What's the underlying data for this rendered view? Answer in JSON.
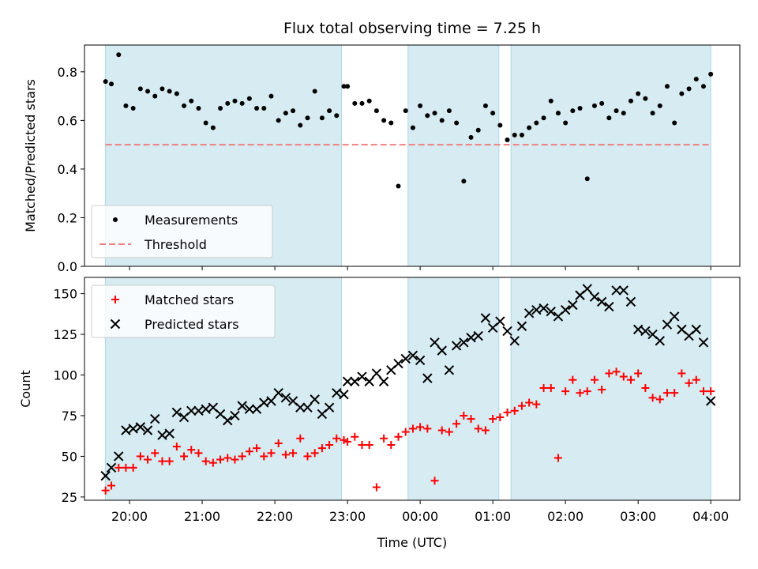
{
  "chart_data": {
    "type": "scatter",
    "title": "Flux total observing time = 7.25 h",
    "xlabel": "Time (UTC)",
    "x_ticks": [
      "20:00",
      "21:00",
      "22:00",
      "23:00",
      "00:00",
      "01:00",
      "02:00",
      "03:00",
      "04:00"
    ],
    "observing_windows_hours": [
      [
        19.667,
        22.917
      ],
      [
        23.833,
        25.083
      ],
      [
        25.25,
        28.0
      ]
    ],
    "panels": [
      {
        "ylabel": "Matched/Predicted stars",
        "ylim": [
          0,
          0.91
        ],
        "y_ticks": [
          "0.0",
          "0.2",
          "0.4",
          "0.6",
          "0.8"
        ],
        "legend_position": "lower-left",
        "threshold": {
          "name": "Threshold",
          "value": 0.5,
          "color": "#f08080"
        },
        "series": [
          {
            "name": "Measurements",
            "marker": "dot",
            "color": "#000000",
            "x": [
              19.67,
              19.75,
              19.85,
              19.95,
              20.05,
              20.15,
              20.25,
              20.35,
              20.45,
              20.55,
              20.65,
              20.75,
              20.85,
              20.95,
              21.05,
              21.15,
              21.25,
              21.35,
              21.45,
              21.55,
              21.65,
              21.75,
              21.85,
              21.95,
              22.05,
              22.15,
              22.25,
              22.35,
              22.45,
              22.55,
              22.65,
              22.75,
              22.85,
              22.95,
              23.0,
              23.1,
              23.2,
              23.3,
              23.4,
              23.5,
              23.6,
              23.7,
              23.8,
              23.9,
              24.0,
              24.1,
              24.2,
              24.3,
              24.4,
              24.5,
              24.6,
              24.7,
              24.8,
              24.9,
              25.0,
              25.1,
              25.2,
              25.3,
              25.4,
              25.5,
              25.6,
              25.7,
              25.8,
              25.9,
              26.0,
              26.1,
              26.2,
              26.3,
              26.4,
              26.5,
              26.6,
              26.7,
              26.8,
              26.9,
              27.0,
              27.1,
              27.2,
              27.3,
              27.4,
              27.5,
              27.6,
              27.7,
              27.8,
              27.9,
              28.0
            ],
            "y": [
              0.76,
              0.75,
              0.87,
              0.66,
              0.65,
              0.73,
              0.72,
              0.7,
              0.73,
              0.72,
              0.71,
              0.66,
              0.68,
              0.65,
              0.59,
              0.57,
              0.65,
              0.67,
              0.68,
              0.67,
              0.69,
              0.65,
              0.65,
              0.7,
              0.6,
              0.63,
              0.64,
              0.58,
              0.61,
              0.72,
              0.61,
              0.64,
              0.62,
              0.74,
              0.74,
              0.67,
              0.67,
              0.68,
              0.64,
              0.6,
              0.59,
              0.33,
              0.64,
              0.57,
              0.66,
              0.62,
              0.63,
              0.6,
              0.64,
              0.59,
              0.35,
              0.53,
              0.56,
              0.66,
              0.63,
              0.58,
              0.52,
              0.54,
              0.54,
              0.57,
              0.59,
              0.61,
              0.68,
              0.63,
              0.59,
              0.64,
              0.65,
              0.36,
              0.66,
              0.67,
              0.61,
              0.64,
              0.63,
              0.68,
              0.71,
              0.69,
              0.63,
              0.66,
              0.74,
              0.59,
              0.71,
              0.73,
              0.77,
              0.74,
              0.79
            ]
          }
        ]
      },
      {
        "ylabel": "Count",
        "ylim": [
          23,
          160
        ],
        "y_ticks": [
          "25",
          "50",
          "75",
          "100",
          "125",
          "150"
        ],
        "legend_position": "upper-left",
        "series": [
          {
            "name": "Matched stars",
            "marker": "plus",
            "color": "#ff0000",
            "x": [
              19.67,
              19.75,
              19.85,
              19.95,
              20.05,
              20.15,
              20.25,
              20.35,
              20.45,
              20.55,
              20.65,
              20.75,
              20.85,
              20.95,
              21.05,
              21.15,
              21.25,
              21.35,
              21.45,
              21.55,
              21.65,
              21.75,
              21.85,
              21.95,
              22.05,
              22.15,
              22.25,
              22.35,
              22.45,
              22.55,
              22.65,
              22.75,
              22.85,
              22.95,
              23.0,
              23.1,
              23.2,
              23.3,
              23.4,
              23.5,
              23.6,
              23.7,
              23.8,
              23.9,
              24.0,
              24.1,
              24.2,
              24.3,
              24.4,
              24.5,
              24.6,
              24.7,
              24.8,
              24.9,
              25.0,
              25.1,
              25.2,
              25.3,
              25.4,
              25.5,
              25.6,
              25.7,
              25.8,
              25.9,
              26.0,
              26.1,
              26.2,
              26.3,
              26.4,
              26.5,
              26.6,
              26.7,
              26.8,
              26.9,
              27.0,
              27.1,
              27.2,
              27.3,
              27.4,
              27.5,
              27.6,
              27.7,
              27.8,
              27.9,
              28.0
            ],
            "y": [
              29,
              32,
              43,
              43,
              43,
              50,
              48,
              52,
              47,
              47,
              56,
              50,
              54,
              52,
              47,
              46,
              48,
              49,
              48,
              50,
              53,
              55,
              50,
              52,
              58,
              51,
              52,
              61,
              50,
              52,
              55,
              57,
              61,
              60,
              59,
              62,
              57,
              57,
              31,
              61,
              57,
              62,
              65,
              67,
              68,
              67,
              35,
              66,
              65,
              70,
              75,
              73,
              67,
              66,
              73,
              74,
              77,
              78,
              81,
              83,
              82,
              92,
              92,
              49,
              90,
              97,
              89,
              90,
              97,
              91,
              101,
              102,
              99,
              97,
              101,
              92,
              86,
              85,
              89,
              89,
              101,
              95,
              97,
              90,
              90
            ],
            "y_full_labels_note": ""
          },
          {
            "name": "Predicted stars",
            "marker": "x",
            "color": "#000000",
            "x": [
              19.67,
              19.75,
              19.85,
              19.95,
              20.05,
              20.15,
              20.25,
              20.35,
              20.45,
              20.55,
              20.65,
              20.75,
              20.85,
              20.95,
              21.05,
              21.15,
              21.25,
              21.35,
              21.45,
              21.55,
              21.65,
              21.75,
              21.85,
              21.95,
              22.05,
              22.15,
              22.25,
              22.35,
              22.45,
              22.55,
              22.65,
              22.75,
              22.85,
              22.95,
              23.0,
              23.1,
              23.2,
              23.3,
              23.4,
              23.5,
              23.6,
              23.7,
              23.8,
              23.9,
              24.0,
              24.1,
              24.2,
              24.3,
              24.4,
              24.5,
              24.6,
              24.7,
              24.8,
              24.9,
              25.0,
              25.1,
              25.2,
              25.3,
              25.4,
              25.5,
              25.6,
              25.7,
              25.8,
              25.9,
              26.0,
              26.1,
              26.2,
              26.3,
              26.4,
              26.5,
              26.6,
              26.7,
              26.8,
              26.9,
              27.0,
              27.1,
              27.2,
              27.3,
              27.4,
              27.5,
              27.6,
              27.7,
              27.8,
              27.9,
              28.0
            ],
            "y": [
              38,
              43,
              50,
              66,
              67,
              68,
              66,
              73,
              63,
              64,
              77,
              74,
              78,
              78,
              79,
              80,
              76,
              72,
              75,
              81,
              79,
              79,
              83,
              84,
              89,
              86,
              84,
              80,
              80,
              85,
              76,
              80,
              89,
              88,
              96,
              96,
              99,
              96,
              101,
              96,
              103,
              107,
              110,
              112,
              109,
              98,
              120,
              115,
              103,
              118,
              120,
              123,
              124,
              135,
              129,
              133,
              127,
              121,
              130,
              138,
              140,
              141,
              139,
              136,
              140,
              143,
              149,
              153,
              148,
              145,
              142,
              152,
              152,
              145,
              128,
              127,
              125,
              121,
              131,
              136,
              128,
              124,
              128,
              120,
              84
            ]
          }
        ]
      }
    ]
  }
}
